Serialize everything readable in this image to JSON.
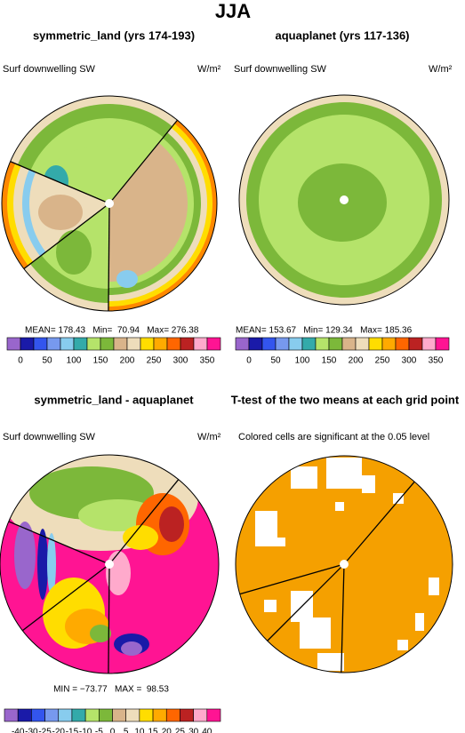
{
  "title": "JJA",
  "panels": [
    {
      "title": "symmetric_land (yrs 174-193)",
      "field": "Surf downwelling SW",
      "units": "W/m²",
      "stats": "MEAN= 178.43   Min=  70.94   Max= 276.38",
      "colorbar": {
        "colors": [
          "#9966cc",
          "#1a1aa8",
          "#3355ee",
          "#7799ee",
          "#88ccee",
          "#33aaaa",
          "#b5e36a",
          "#7cb83a",
          "#d9b48a",
          "#eeddbb",
          "#ffdd00",
          "#ffaa00",
          "#ff6600",
          "#bb2222",
          "#ffaacc",
          "#ff1493"
        ],
        "labels": [
          0,
          50,
          100,
          150,
          200,
          250,
          300,
          350
        ]
      }
    },
    {
      "title": "aquaplanet (yrs 117-136)",
      "field": "Surf downwelling SW",
      "units": "W/m²",
      "stats": "MEAN= 153.67   Min= 129.34   Max= 185.36",
      "colorbar": {
        "colors": [
          "#9966cc",
          "#1a1aa8",
          "#3355ee",
          "#7799ee",
          "#88ccee",
          "#33aaaa",
          "#b5e36a",
          "#7cb83a",
          "#d9b48a",
          "#eeddbb",
          "#ffdd00",
          "#ffaa00",
          "#ff6600",
          "#bb2222",
          "#ffaacc",
          "#ff1493"
        ],
        "labels": [
          0,
          50,
          100,
          150,
          200,
          250,
          300,
          350
        ]
      }
    },
    {
      "title": "symmetric_land - aquaplanet",
      "field": "Surf downwelling SW",
      "units": "W/m²",
      "stats": "MIN = −73.77   MAX =  98.53",
      "colorbar": {
        "colors": [
          "#9966cc",
          "#1a1aa8",
          "#3355ee",
          "#7799ee",
          "#88ccee",
          "#33aaaa",
          "#b5e36a",
          "#7cb83a",
          "#d9b48a",
          "#eeddbb",
          "#ffdd00",
          "#ffaa00",
          "#ff6600",
          "#bb2222",
          "#ffaacc",
          "#ff1493"
        ],
        "labels": [
          -40,
          -30,
          -25,
          -20,
          -15,
          -10,
          -5,
          0,
          5,
          10,
          15,
          20,
          25,
          30,
          40
        ]
      }
    },
    {
      "title": "T-test of the two means at each grid point",
      "field": "Colored cells are significant at the 0.05 level"
    }
  ]
}
